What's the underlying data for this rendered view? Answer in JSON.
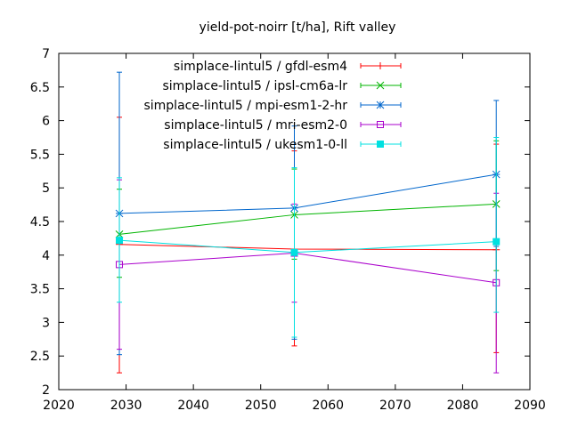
{
  "chart_data": {
    "type": "line",
    "title": "yield-pot-noirr [t/ha], Rift valley",
    "xlabel": "",
    "ylabel": "",
    "xlim": [
      2020,
      2090
    ],
    "ylim": [
      2,
      7
    ],
    "x_ticks": [
      2020,
      2030,
      2040,
      2050,
      2060,
      2070,
      2080,
      2090
    ],
    "y_ticks": [
      2,
      2.5,
      3,
      3.5,
      4,
      4.5,
      5,
      5.5,
      6,
      6.5,
      7
    ],
    "x_tick_labels": [
      "2020",
      "2030",
      "2040",
      "2050",
      "2060",
      "2070",
      "2080",
      "2090"
    ],
    "y_tick_labels": [
      "2",
      "2.5",
      "3",
      "3.5",
      "4",
      "4.5",
      "5",
      "5.5",
      "6",
      "6.5",
      "7"
    ],
    "grid": false,
    "legend_position": "top-right",
    "x": [
      2029,
      2055,
      2085
    ],
    "series": [
      {
        "name": "simplace-lintul5 / gfdl-esm4",
        "color": "#ff0000",
        "marker": "plus",
        "values": [
          4.16,
          4.09,
          4.08
        ],
        "err_low": [
          2.25,
          2.65,
          2.55
        ],
        "err_high": [
          6.05,
          5.55,
          5.65
        ]
      },
      {
        "name": "simplace-lintul5 / ipsl-cm6a-lr",
        "color": "#00b400",
        "marker": "cross",
        "values": [
          4.31,
          4.6,
          4.76
        ],
        "err_low": [
          3.67,
          3.94,
          3.77
        ],
        "err_high": [
          4.98,
          5.28,
          5.7
        ]
      },
      {
        "name": "simplace-lintul5 / mpi-esm1-2-hr",
        "color": "#0066cc",
        "marker": "star",
        "values": [
          4.62,
          4.7,
          5.2
        ],
        "err_low": [
          2.52,
          2.75,
          4.13
        ],
        "err_high": [
          6.72,
          5.92,
          6.3
        ]
      },
      {
        "name": "simplace-lintul5 / mri-esm2-0",
        "color": "#aa00cc",
        "marker": "square-open",
        "values": [
          3.86,
          4.03,
          3.59
        ],
        "err_low": [
          2.6,
          3.3,
          2.25
        ],
        "err_high": [
          5.12,
          4.76,
          4.92
        ]
      },
      {
        "name": "simplace-lintul5 / ukesm1-0-ll",
        "color": "#00e0e0",
        "marker": "square-filled",
        "values": [
          4.22,
          4.04,
          4.2
        ],
        "err_low": [
          3.3,
          2.78,
          3.15
        ],
        "err_high": [
          5.15,
          5.3,
          5.75
        ]
      }
    ]
  }
}
